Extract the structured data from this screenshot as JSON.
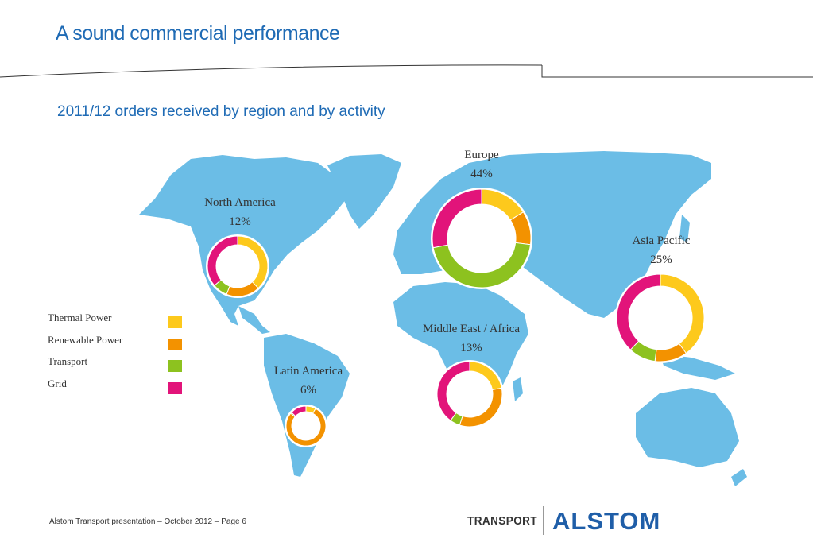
{
  "header": {
    "title": "A sound commercial performance",
    "subtitle": "2011/12 orders received by region and by activity"
  },
  "legend": [
    {
      "label": "Thermal Power",
      "color": "#fdc91c"
    },
    {
      "label": "Renewable Power",
      "color": "#f39200"
    },
    {
      "label": "Transport",
      "color": "#8dc21f"
    },
    {
      "label": "Grid",
      "color": "#e2147a"
    }
  ],
  "chart_data": {
    "type": "pie",
    "categories": [
      "Thermal Power",
      "Renewable Power",
      "Transport",
      "Grid"
    ],
    "colors": [
      "#fdc91c",
      "#f39200",
      "#8dc21f",
      "#e2147a"
    ],
    "series": [
      {
        "name": "North America",
        "share": "12%",
        "values": [
          38,
          18,
          8,
          36
        ]
      },
      {
        "name": "Europe",
        "share": "44%",
        "values": [
          16,
          11,
          45,
          28
        ]
      },
      {
        "name": "Asia Pacific",
        "share": "25%",
        "values": [
          40,
          12,
          10,
          38
        ]
      },
      {
        "name": "Middle East / Africa",
        "share": "13%",
        "values": [
          22,
          33,
          5,
          40
        ]
      },
      {
        "name": "Latin America",
        "share": "6%",
        "values": [
          8,
          78,
          1,
          13
        ]
      }
    ]
  },
  "footer": {
    "text": "Alstom Transport presentation – October 2012 – Page 6",
    "brand_transport": "TRANSPORT",
    "brand_alstom": "ALSTOM"
  }
}
